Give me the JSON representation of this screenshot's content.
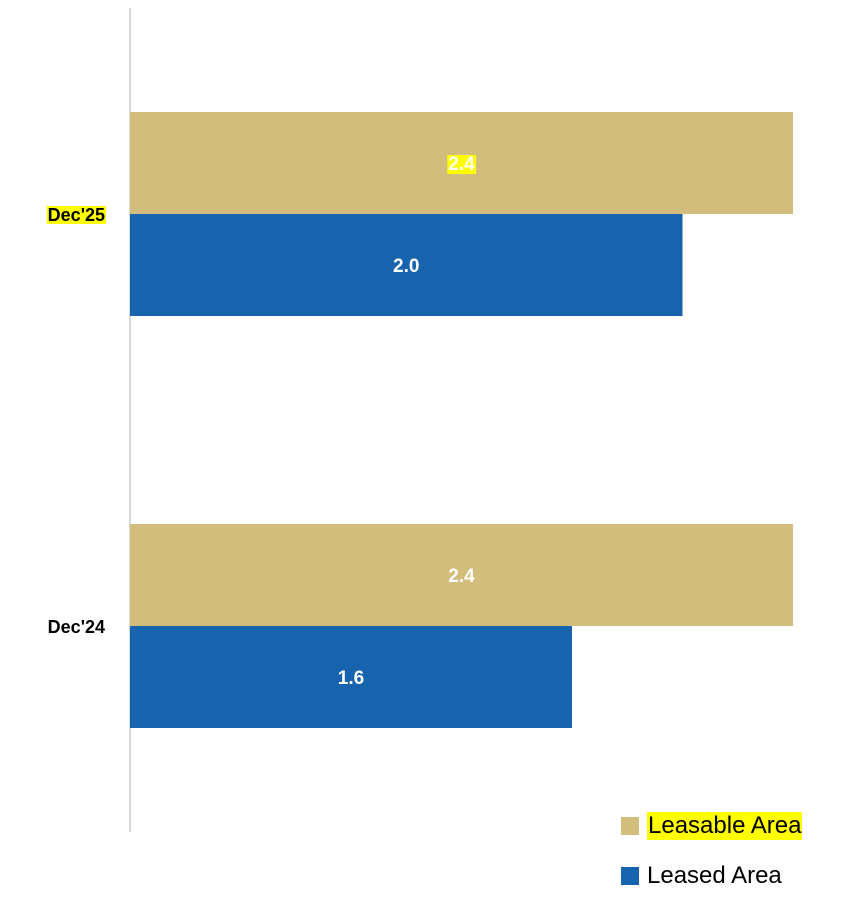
{
  "chart_data": {
    "type": "bar",
    "orientation": "horizontal",
    "categories": [
      "Dec'25",
      "Dec'24"
    ],
    "series": [
      {
        "name": "Leasable Area",
        "values": [
          2.4,
          2.4
        ],
        "color": "#D2BD7D"
      },
      {
        "name": "Leased Area",
        "values": [
          2.0,
          1.6
        ],
        "color": "#1763AD"
      }
    ],
    "data_labels": [
      [
        "2.4",
        "2.4"
      ],
      [
        "2.0",
        "1.6"
      ]
    ],
    "xlim": [
      0,
      2.4
    ],
    "grid": false,
    "legend_position": "bottom-right",
    "highlighted_text": [
      "Dec'25",
      "2.4 (Dec'25 Leasable Area)",
      "Leasable Area"
    ]
  }
}
